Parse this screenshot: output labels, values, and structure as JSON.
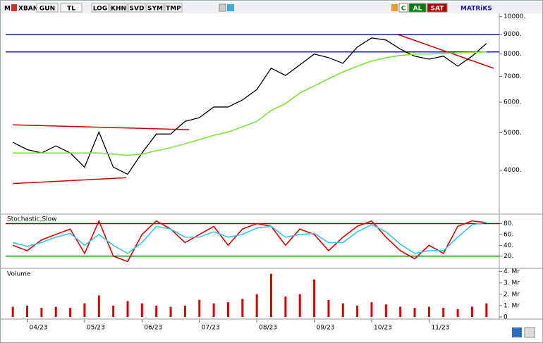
{
  "toolbar": {
    "logo": "M",
    "symbol": "XBANK",
    "buttons": [
      "GUN",
      "TL",
      "LOG",
      "KHN",
      "SVD",
      "SYM",
      "TMP"
    ],
    "right_buttons": [
      "C",
      "AL",
      "SAT"
    ],
    "brand": "MATRiKS"
  },
  "chart_data": [
    {
      "type": "line",
      "log_scale": true,
      "ylim": [
        3100,
        10200
      ],
      "yticks": [
        {
          "value": 4000,
          "label": "4000."
        },
        {
          "value": 5000,
          "label": "5000."
        },
        {
          "value": 6000,
          "label": "6000."
        },
        {
          "value": 7000,
          "label": "7000."
        },
        {
          "value": 8000,
          "label": "8000."
        },
        {
          "value": 9000,
          "label": "9000."
        },
        {
          "value": 10000,
          "label": "10000."
        }
      ],
      "series": [
        {
          "color": "#000000",
          "values": [
            4720,
            4520,
            4430,
            4620,
            4430,
            4070,
            5020,
            4070,
            3900,
            4430,
            4960,
            4960,
            5350,
            5470,
            5830,
            5830,
            6080,
            6470,
            7350,
            7040,
            7500,
            8000,
            7830,
            7570,
            8340,
            8810,
            8700,
            8240,
            7900,
            7760,
            7900,
            7440,
            7900,
            8520
          ]
        },
        {
          "color": "#7ee23a",
          "values": [
            4430,
            4430,
            4430,
            4430,
            4430,
            4430,
            4430,
            4400,
            4370,
            4400,
            4490,
            4570,
            4680,
            4800,
            4920,
            5020,
            5180,
            5350,
            5710,
            5950,
            6340,
            6610,
            6900,
            7190,
            7440,
            7670,
            7830,
            7930,
            8000,
            8000,
            8030,
            8060,
            8080,
            8100
          ]
        }
      ],
      "levels": [
        {
          "value": 9000,
          "color": "#1a1aa0"
        },
        {
          "value": 8100,
          "color": "#1a1aa0"
        }
      ],
      "trendlines": [
        {
          "from": [
            0,
            5240
          ],
          "to": [
            12.3,
            5090
          ],
          "color": "#cc0000"
        },
        {
          "from": [
            0,
            3690
          ],
          "to": [
            7.9,
            3820
          ],
          "color": "#cc0000"
        },
        {
          "from": [
            26.8,
            9000
          ],
          "to": [
            33.5,
            7350
          ],
          "color": "#cc0000"
        }
      ]
    },
    {
      "type": "line",
      "title": "Stochastic,Slow",
      "ylim": [
        0,
        95
      ],
      "yticks": [
        {
          "value": 20,
          "label": "20."
        },
        {
          "value": 40,
          "label": "40."
        },
        {
          "value": 60,
          "label": "60."
        },
        {
          "value": 80,
          "label": "80."
        }
      ],
      "series": [
        {
          "color": "#dd0000",
          "values": [
            40,
            30,
            50,
            60,
            70,
            25,
            85,
            20,
            10,
            60,
            85,
            70,
            45,
            60,
            75,
            40,
            70,
            80,
            75,
            40,
            70,
            60,
            30,
            55,
            75,
            85,
            55,
            30,
            15,
            40,
            25,
            75,
            85,
            82
          ]
        },
        {
          "color": "#33c6e6",
          "values": [
            45,
            38,
            45,
            55,
            62,
            40,
            60,
            40,
            25,
            45,
            75,
            70,
            55,
            55,
            65,
            55,
            60,
            72,
            75,
            55,
            60,
            62,
            45,
            45,
            65,
            78,
            65,
            42,
            25,
            30,
            30,
            55,
            78,
            82
          ]
        }
      ],
      "levels": [
        {
          "value": 80,
          "color": "#8b0000"
        },
        {
          "value": 20,
          "color": "#008000"
        }
      ]
    },
    {
      "type": "bar",
      "title": "Volume",
      "color": "#dd0000",
      "ylim": [
        0,
        4.1
      ],
      "yticks": [
        0,
        {
          "value": 1,
          "label": "1. Mr"
        },
        {
          "value": 2,
          "label": "2. Mr"
        },
        {
          "value": 3,
          "label": "3. Mr"
        },
        {
          "value": 4,
          "label": "4. Mr"
        }
      ],
      "values": [
        0.9,
        1.0,
        0.8,
        0.9,
        0.8,
        1.2,
        1.9,
        1.0,
        1.4,
        1.2,
        1.0,
        0.9,
        1.0,
        1.5,
        1.2,
        1.3,
        1.6,
        2.0,
        3.8,
        1.8,
        2.0,
        3.3,
        1.5,
        1.2,
        1.0,
        1.3,
        1.1,
        0.9,
        0.8,
        0.9,
        0.8,
        0.7,
        0.9,
        1.2
      ],
      "categories": [
        null,
        "04/23",
        null,
        null,
        null,
        "05/23",
        null,
        null,
        null,
        "06/23",
        null,
        null,
        null,
        "07/23",
        null,
        null,
        null,
        "08/23",
        null,
        null,
        null,
        "09/23",
        null,
        null,
        null,
        "10/23",
        null,
        null,
        null,
        "11/23",
        null,
        null,
        null,
        null
      ]
    }
  ]
}
